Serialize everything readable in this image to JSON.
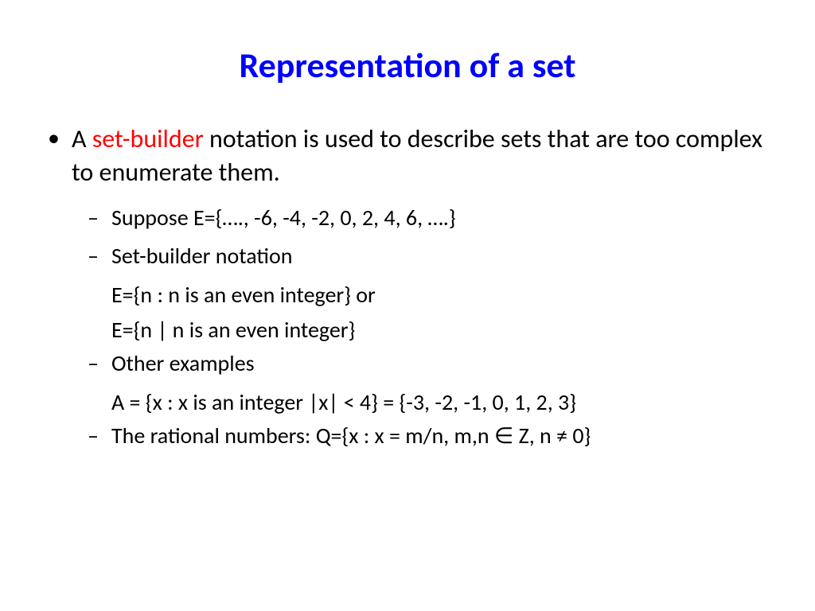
{
  "title": {
    "text": "Representation of a set",
    "color": "#0000ff"
  },
  "content": {
    "main_bullet": {
      "prefix": "A ",
      "highlight": "set-builder",
      "suffix": " notation is used to describe sets that are too complex to enumerate them.",
      "highlight_color": "#ff0000"
    },
    "sub_items": [
      {
        "label": "Suppose E={…., -6, -4, -2, 0, 2, 4, 6, ….}",
        "lines": []
      },
      {
        "label": " Set-builder notation",
        "lines": [
          "E={n : n is an even integer} or",
          "E={n | n is an even integer}"
        ]
      },
      {
        "label": " Other examples",
        "lines": [
          "A = {x : x is an integer |x| < 4} = {-3, -2, -1, 0, 1, 2, 3}"
        ]
      },
      {
        "label": " The rational numbers: Q={x : x = m/n, m,n ∈  Z, n ≠ 0}",
        "lines": []
      }
    ]
  },
  "colors": {
    "text": "#000000",
    "background": "#ffffff"
  }
}
